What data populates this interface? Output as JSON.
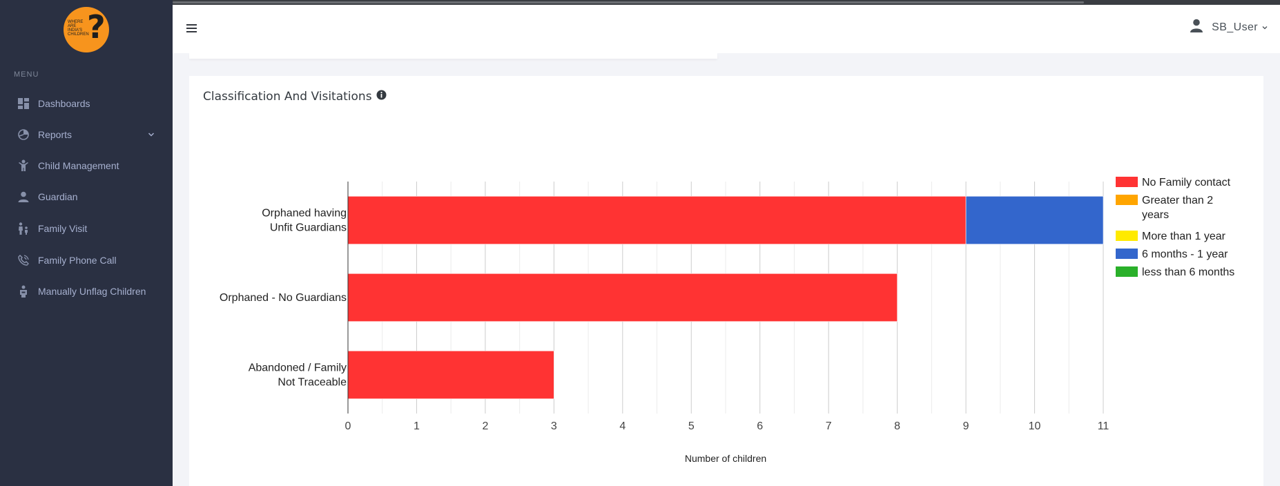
{
  "sidebar": {
    "logo_text": "WHERE ARE INDIA'S CHILDREN",
    "menu_title": "MENU",
    "items": [
      {
        "label": "Dashboards",
        "icon": "dashboard-icon"
      },
      {
        "label": "Reports",
        "icon": "reports-icon",
        "has_submenu": true
      },
      {
        "label": "Child Management",
        "icon": "child-icon"
      },
      {
        "label": "Guardian",
        "icon": "person-icon"
      },
      {
        "label": "Family Visit",
        "icon": "family-icon"
      },
      {
        "label": "Family Phone Call",
        "icon": "phone-icon"
      },
      {
        "label": "Manually Unflag Children",
        "icon": "unflag-icon"
      }
    ]
  },
  "header": {
    "menu_icon": "hamburger-icon",
    "user_name": "SB_User"
  },
  "card": {
    "title": "Classification And Visitations"
  },
  "chart_data": {
    "type": "bar",
    "orientation": "horizontal",
    "stacked": true,
    "categories": [
      "Orphaned having Unfit Guardians",
      "Orphaned - No Guardians",
      "Abandoned / Family Not Traceable"
    ],
    "series": [
      {
        "name": "No Family contact",
        "color": "#ff3333",
        "values": [
          9,
          8,
          3
        ]
      },
      {
        "name": "Greater than 2 years",
        "color": "#ffa500",
        "values": [
          0,
          0,
          0
        ]
      },
      {
        "name": "More than 1 year",
        "color": "#ffea00",
        "values": [
          0,
          0,
          0
        ]
      },
      {
        "name": "6 months - 1 year",
        "color": "#3366cc",
        "values": [
          2,
          0,
          0
        ]
      },
      {
        "name": "less than 6 months",
        "color": "#2ab02a",
        "values": [
          0,
          0,
          0
        ]
      }
    ],
    "xlabel": "Number of children",
    "ylabel": "",
    "xlim": [
      0,
      11
    ],
    "xticks": [
      0,
      1,
      2,
      3,
      4,
      5,
      6,
      7,
      8,
      9,
      10,
      11
    ],
    "grid": true,
    "legend_position": "right"
  }
}
